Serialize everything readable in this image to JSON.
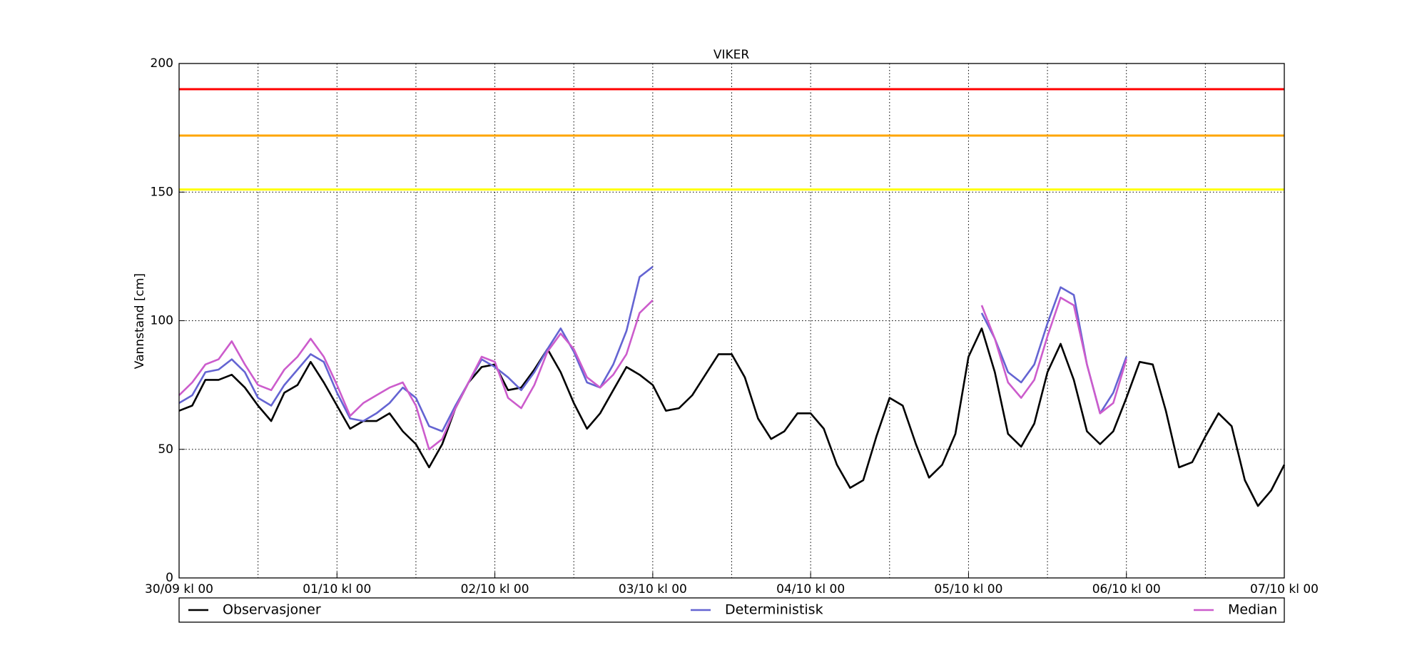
{
  "chart_data": {
    "type": "line",
    "title": "VIKER",
    "y_label": "Vannstand [cm]",
    "x": [
      0,
      2,
      4,
      6,
      8,
      10,
      12,
      14,
      16,
      18,
      20,
      22,
      24,
      26,
      28,
      30,
      32,
      34,
      36,
      38,
      40,
      42,
      44,
      46,
      48,
      50,
      52,
      54,
      56,
      58,
      60,
      62,
      64,
      66,
      68,
      70,
      72,
      74,
      76,
      78,
      80,
      82,
      84,
      86,
      88,
      90,
      92,
      94,
      96,
      98,
      100,
      102,
      104,
      106,
      108,
      110,
      112,
      114,
      116,
      118,
      120,
      122,
      124,
      126,
      128,
      130,
      132,
      134,
      136,
      138,
      140,
      142,
      144,
      146,
      148,
      150,
      152,
      154,
      156,
      158,
      160,
      162,
      164,
      166,
      168
    ],
    "xlim": [
      0,
      168
    ],
    "xticks": [
      {
        "value": 0,
        "label": "30/09 kl 00"
      },
      {
        "value": 24,
        "label": "01/10 kl 00"
      },
      {
        "value": 48,
        "label": "02/10 kl 00"
      },
      {
        "value": 72,
        "label": "03/10 kl 00"
      },
      {
        "value": 96,
        "label": "04/10 kl 00"
      },
      {
        "value": 120,
        "label": "05/10 kl 00"
      },
      {
        "value": 144,
        "label": "06/10 kl 00"
      },
      {
        "value": 168,
        "label": "07/10 kl 00"
      }
    ],
    "xminorticks": [
      12,
      36,
      60,
      84,
      108,
      132,
      156
    ],
    "ylim": [
      0,
      200
    ],
    "yticks": [
      0,
      50,
      100,
      150,
      200
    ],
    "grid": true,
    "hlines": [
      {
        "value": 190,
        "color": "#ff0000"
      },
      {
        "value": 172,
        "color": "#ffa500"
      },
      {
        "value": 151,
        "color": "#ffff00"
      }
    ],
    "series": [
      {
        "name": "Observasjoner",
        "color": "#000000",
        "values": [
          65,
          67,
          77,
          77,
          79,
          74,
          67,
          61,
          72,
          75,
          84,
          76,
          67,
          58,
          61,
          61,
          64,
          57,
          52,
          43,
          52,
          66,
          76,
          82,
          83,
          73,
          74,
          81,
          89,
          80,
          68,
          58,
          64,
          73,
          82,
          79,
          75,
          65,
          66,
          71,
          79,
          87,
          87,
          78,
          62,
          54,
          57,
          64,
          64,
          58,
          44,
          35,
          38,
          55,
          70,
          67,
          52,
          39,
          44,
          56,
          86,
          97,
          80,
          56,
          51,
          60,
          80,
          91,
          77,
          57,
          52,
          57,
          70,
          84,
          83,
          65,
          43,
          45,
          55,
          64,
          59,
          38,
          28,
          34,
          44
        ]
      },
      {
        "name": "Deterministisk",
        "color": "#6464d2",
        "values": [
          68,
          71,
          80,
          81,
          85,
          80,
          70,
          67,
          75,
          81,
          87,
          84,
          72,
          62,
          61,
          64,
          68,
          74,
          70,
          59,
          57,
          67,
          76,
          85,
          82,
          78,
          73,
          80,
          89,
          97,
          88,
          76,
          74,
          83,
          96,
          117,
          121,
          null,
          null,
          null,
          null,
          null,
          null,
          null,
          null,
          null,
          null,
          null,
          null,
          null,
          null,
          null,
          null,
          null,
          null,
          null,
          null,
          null,
          null,
          null,
          null,
          103,
          93,
          80,
          76,
          83,
          99,
          113,
          110,
          83,
          64,
          72,
          86,
          null,
          null,
          null,
          null,
          null,
          null,
          null,
          null,
          null,
          null,
          null,
          null
        ]
      },
      {
        "name": "Median",
        "color": "#cc5ccc",
        "values": [
          71,
          76,
          83,
          85,
          92,
          83,
          75,
          73,
          81,
          86,
          93,
          86,
          75,
          63,
          68,
          71,
          74,
          76,
          67,
          50,
          54,
          66,
          76,
          86,
          84,
          70,
          66,
          75,
          88,
          95,
          89,
          78,
          74,
          79,
          87,
          103,
          108,
          null,
          null,
          null,
          null,
          null,
          null,
          null,
          null,
          null,
          null,
          null,
          null,
          null,
          null,
          null,
          null,
          null,
          null,
          null,
          null,
          null,
          null,
          null,
          null,
          106,
          93,
          76,
          70,
          77,
          94,
          109,
          106,
          83,
          64,
          68,
          85,
          null,
          null,
          null,
          null,
          null,
          null,
          null,
          null,
          null,
          null,
          null,
          null
        ]
      }
    ]
  }
}
